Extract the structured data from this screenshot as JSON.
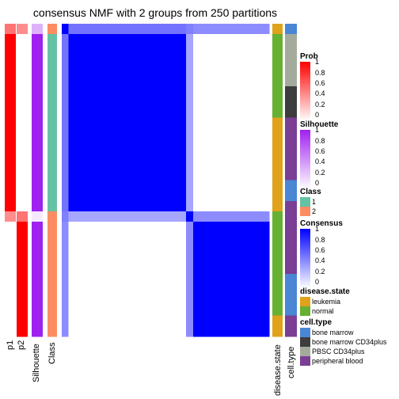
{
  "title": "consensus NMF with 2 groups from 250 partitions",
  "colors": {
    "prob_high": "#ff0000",
    "prob_low": "#ffffff",
    "silhouette_high": "#a020f0",
    "class_1": "#66c2a5",
    "class_2": "#fc8d62",
    "consensus_high": "#0000ff",
    "leukemia": "#e0a11b",
    "normal": "#66b032",
    "bone_marrow": "#4a86d4",
    "bone_marrow_cd34plus": "#3d3d3d",
    "pbsc_cd34plus": "#a4ab9c",
    "peripheral_blood": "#7a3e94"
  },
  "legends": {
    "prob": {
      "title": "Prob",
      "ticks": [
        "1",
        "0.8",
        "0.6",
        "0.4",
        "0.2",
        "0"
      ]
    },
    "silhouette": {
      "title": "Silhouette",
      "ticks": [
        "1",
        "0.8",
        "0.6",
        "0.4",
        "0.2",
        "0"
      ]
    },
    "class": {
      "title": "Class",
      "items": [
        {
          "label": "1",
          "color": "#66c2a5"
        },
        {
          "label": "2",
          "color": "#fc8d62"
        }
      ]
    },
    "consensus": {
      "title": "Consensus",
      "ticks": [
        "1",
        "0.8",
        "0.6",
        "0.4",
        "0.2",
        "0"
      ]
    },
    "disease_state": {
      "title": "disease.state",
      "items": [
        {
          "label": "leukemia",
          "color": "#e0a11b"
        },
        {
          "label": "normal",
          "color": "#66b032"
        }
      ]
    },
    "cell_type": {
      "title": "cell.type",
      "items": [
        {
          "label": "bone marrow",
          "color": "#4a86d4"
        },
        {
          "label": "bone marrow CD34plus",
          "color": "#3d3d3d"
        },
        {
          "label": "PBSC CD34plus",
          "color": "#a4ab9c"
        },
        {
          "label": "peripheral blood",
          "color": "#7a3e94"
        }
      ]
    }
  },
  "column_labels": {
    "p1": "p1",
    "p2": "p2",
    "silhouette": "Silhouette",
    "class": "Class",
    "disease_state": "disease.state",
    "cell_type": "cell.type"
  },
  "chart_data": {
    "type": "heatmap",
    "title": "consensus NMF with 2 groups from 250 partitions",
    "n_groups": 2,
    "n_partitions": 250,
    "samples": [
      {
        "class": 2,
        "p1": 0.55,
        "p2": 0.45,
        "silhouette": 0.35,
        "disease_state": "leukemia",
        "cell_type": "bone marrow"
      },
      {
        "class": 1,
        "p1": 1,
        "p2": 0,
        "silhouette": 1,
        "disease_state": "normal",
        "cell_type": "PBSC CD34plus"
      },
      {
        "class": 1,
        "p1": 1,
        "p2": 0,
        "silhouette": 1,
        "disease_state": "normal",
        "cell_type": "PBSC CD34plus"
      },
      {
        "class": 1,
        "p1": 1,
        "p2": 0,
        "silhouette": 1,
        "disease_state": "normal",
        "cell_type": "PBSC CD34plus"
      },
      {
        "class": 1,
        "p1": 1,
        "p2": 0,
        "silhouette": 1,
        "disease_state": "normal",
        "cell_type": "PBSC CD34plus"
      },
      {
        "class": 1,
        "p1": 1,
        "p2": 0,
        "silhouette": 1,
        "disease_state": "normal",
        "cell_type": "PBSC CD34plus"
      },
      {
        "class": 1,
        "p1": 1,
        "p2": 0,
        "silhouette": 1,
        "disease_state": "normal",
        "cell_type": "bone marrow CD34plus"
      },
      {
        "class": 1,
        "p1": 1,
        "p2": 0,
        "silhouette": 1,
        "disease_state": "normal",
        "cell_type": "bone marrow CD34plus"
      },
      {
        "class": 1,
        "p1": 1,
        "p2": 0,
        "silhouette": 1,
        "disease_state": "normal",
        "cell_type": "bone marrow CD34plus"
      },
      {
        "class": 1,
        "p1": 1,
        "p2": 0,
        "silhouette": 1,
        "disease_state": "leukemia",
        "cell_type": "peripheral blood"
      },
      {
        "class": 1,
        "p1": 1,
        "p2": 0,
        "silhouette": 1,
        "disease_state": "leukemia",
        "cell_type": "peripheral blood"
      },
      {
        "class": 1,
        "p1": 1,
        "p2": 0,
        "silhouette": 1,
        "disease_state": "leukemia",
        "cell_type": "peripheral blood"
      },
      {
        "class": 1,
        "p1": 1,
        "p2": 0,
        "silhouette": 1,
        "disease_state": "leukemia",
        "cell_type": "peripheral blood"
      },
      {
        "class": 1,
        "p1": 1,
        "p2": 0,
        "silhouette": 1,
        "disease_state": "leukemia",
        "cell_type": "peripheral blood"
      },
      {
        "class": 1,
        "p1": 1,
        "p2": 0,
        "silhouette": 1,
        "disease_state": "leukemia",
        "cell_type": "peripheral blood"
      },
      {
        "class": 1,
        "p1": 1,
        "p2": 0,
        "silhouette": 1,
        "disease_state": "leukemia",
        "cell_type": "bone marrow"
      },
      {
        "class": 1,
        "p1": 1,
        "p2": 0,
        "silhouette": 1,
        "disease_state": "leukemia",
        "cell_type": "bone marrow"
      },
      {
        "class": 1,
        "p1": 1,
        "p2": 0,
        "silhouette": 1,
        "disease_state": "leukemia",
        "cell_type": "peripheral blood"
      },
      {
        "class": 2,
        "p1": 0.45,
        "p2": 0.55,
        "silhouette": 0.1,
        "disease_state": "normal",
        "cell_type": "peripheral blood"
      },
      {
        "class": 2,
        "p1": 0,
        "p2": 1,
        "silhouette": 1,
        "disease_state": "normal",
        "cell_type": "peripheral blood"
      },
      {
        "class": 2,
        "p1": 0,
        "p2": 1,
        "silhouette": 1,
        "disease_state": "normal",
        "cell_type": "peripheral blood"
      },
      {
        "class": 2,
        "p1": 0,
        "p2": 1,
        "silhouette": 1,
        "disease_state": "normal",
        "cell_type": "peripheral blood"
      },
      {
        "class": 2,
        "p1": 0,
        "p2": 1,
        "silhouette": 1,
        "disease_state": "normal",
        "cell_type": "peripheral blood"
      },
      {
        "class": 2,
        "p1": 0,
        "p2": 1,
        "silhouette": 1,
        "disease_state": "normal",
        "cell_type": "peripheral blood"
      },
      {
        "class": 2,
        "p1": 0,
        "p2": 1,
        "silhouette": 1,
        "disease_state": "normal",
        "cell_type": "bone marrow"
      },
      {
        "class": 2,
        "p1": 0,
        "p2": 1,
        "silhouette": 1,
        "disease_state": "normal",
        "cell_type": "bone marrow"
      },
      {
        "class": 2,
        "p1": 0,
        "p2": 1,
        "silhouette": 1,
        "disease_state": "normal",
        "cell_type": "bone marrow"
      },
      {
        "class": 2,
        "p1": 0,
        "p2": 1,
        "silhouette": 1,
        "disease_state": "normal",
        "cell_type": "bone marrow"
      },
      {
        "class": 2,
        "p1": 0,
        "p2": 1,
        "silhouette": 1,
        "disease_state": "leukemia",
        "cell_type": "peripheral blood"
      },
      {
        "class": 2,
        "p1": 0,
        "p2": 1,
        "silhouette": 1,
        "disease_state": "leukemia",
        "cell_type": "peripheral blood"
      }
    ],
    "consensus_blocks": {
      "within_class_1": 1,
      "within_class_2": 1,
      "between_classes": 0,
      "ambiguous_sample_with_class_1": 0.55,
      "ambiguous_sample_with_class_2": 0.45,
      "low_confidence_sample_with_class_1": 0.35,
      "low_confidence_sample_with_class_2": 0.45
    }
  }
}
